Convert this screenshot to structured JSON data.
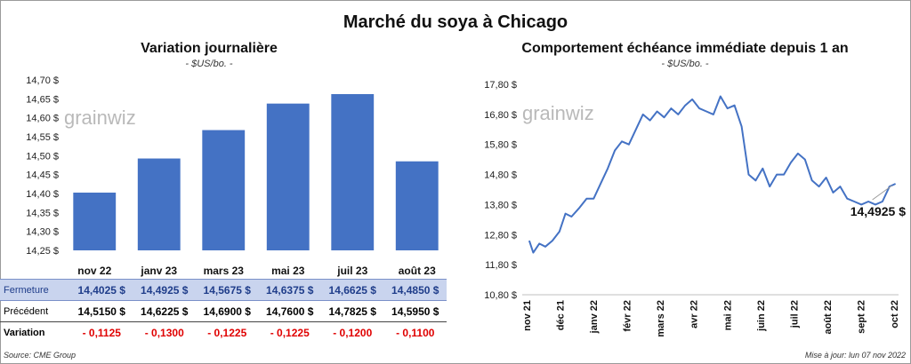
{
  "title": "Marché du soya à Chicago",
  "chart_data": [
    {
      "type": "bar",
      "title": "Variation journalière",
      "subtitle": "- $US/bo. -",
      "categories": [
        "nov 22",
        "janv 23",
        "mars 23",
        "mai 23",
        "juil 23",
        "août 23"
      ],
      "values": [
        14.4025,
        14.4925,
        14.5675,
        14.6375,
        14.6625,
        14.485
      ],
      "ylim": [
        14.25,
        14.7
      ],
      "yticks": [
        "14,25 $",
        "14,30 $",
        "14,35 $",
        "14,40 $",
        "14,45 $",
        "14,50 $",
        "14,55 $",
        "14,60 $",
        "14,65 $",
        "14,70 $"
      ],
      "color": "#4472c4",
      "grid": false
    },
    {
      "type": "line",
      "title": "Comportement échéance immédiate depuis 1 an",
      "subtitle": "- $US/bo. -",
      "xlabels": [
        "nov 21",
        "déc 21",
        "janv 22",
        "févr 22",
        "mars 22",
        "avr 22",
        "mai 22",
        "juin 22",
        "juil 22",
        "août 22",
        "sept 22",
        "oct 22"
      ],
      "x": [
        "2021-11-08",
        "2021-11-12",
        "2021-11-18",
        "2021-11-24",
        "2021-12-01",
        "2021-12-08",
        "2021-12-14",
        "2021-12-20",
        "2021-12-28",
        "2022-01-04",
        "2022-01-11",
        "2022-01-18",
        "2022-01-25",
        "2022-02-01",
        "2022-02-08",
        "2022-02-15",
        "2022-02-22",
        "2022-03-01",
        "2022-03-08",
        "2022-03-15",
        "2022-03-22",
        "2022-03-29",
        "2022-04-05",
        "2022-04-12",
        "2022-04-19",
        "2022-04-26",
        "2022-05-03",
        "2022-05-10",
        "2022-05-17",
        "2022-05-24",
        "2022-05-31",
        "2022-06-07",
        "2022-06-14",
        "2022-06-21",
        "2022-06-28",
        "2022-07-05",
        "2022-07-12",
        "2022-07-19",
        "2022-07-26",
        "2022-08-02",
        "2022-08-09",
        "2022-08-16",
        "2022-08-23",
        "2022-08-30",
        "2022-09-06",
        "2022-09-13",
        "2022-09-20",
        "2022-09-27",
        "2022-10-04",
        "2022-10-11",
        "2022-10-18",
        "2022-10-25",
        "2022-11-01",
        "2022-11-07"
      ],
      "values": [
        12.6,
        12.2,
        12.5,
        12.4,
        12.6,
        12.9,
        13.5,
        13.4,
        13.7,
        14.0,
        14.0,
        14.5,
        15.0,
        15.6,
        15.9,
        15.8,
        16.3,
        16.8,
        16.6,
        16.9,
        16.7,
        17.0,
        16.8,
        17.1,
        17.3,
        17.0,
        16.9,
        16.8,
        17.4,
        17.0,
        17.1,
        16.4,
        14.8,
        14.6,
        15.0,
        14.4,
        14.8,
        14.8,
        15.2,
        15.5,
        15.3,
        14.6,
        14.4,
        14.7,
        14.2,
        14.4,
        14.0,
        13.9,
        13.8,
        13.9,
        13.8,
        13.9,
        14.4,
        14.4925
      ],
      "ylim": [
        10.8,
        17.8
      ],
      "yticks": [
        "10,80 $",
        "11,80 $",
        "12,80 $",
        "13,80 $",
        "14,80 $",
        "15,80 $",
        "16,80 $",
        "17,80 $"
      ],
      "annotation": "14,4925 $",
      "color": "#4472c4"
    }
  ],
  "watermark": "grainwiz",
  "table": {
    "rows": [
      {
        "label": "Fermeture",
        "values": [
          "14,4025  $",
          "14,4925  $",
          "14,5675  $",
          "14,6375  $",
          "14,6625  $",
          "14,4850  $"
        ]
      },
      {
        "label": "Précédent",
        "values": [
          "14,5150  $",
          "14,6225  $",
          "14,6900  $",
          "14,7600  $",
          "14,7825  $",
          "14,5950  $"
        ]
      },
      {
        "label": "Variation",
        "values": [
          "- 0,1125",
          "- 0,1300",
          "- 0,1225",
          "- 0,1225",
          "- 0,1200",
          "- 0,1100"
        ]
      }
    ]
  },
  "source": "Source: CME Group",
  "updated": "Mise à jour: lun 07 nov 2022"
}
